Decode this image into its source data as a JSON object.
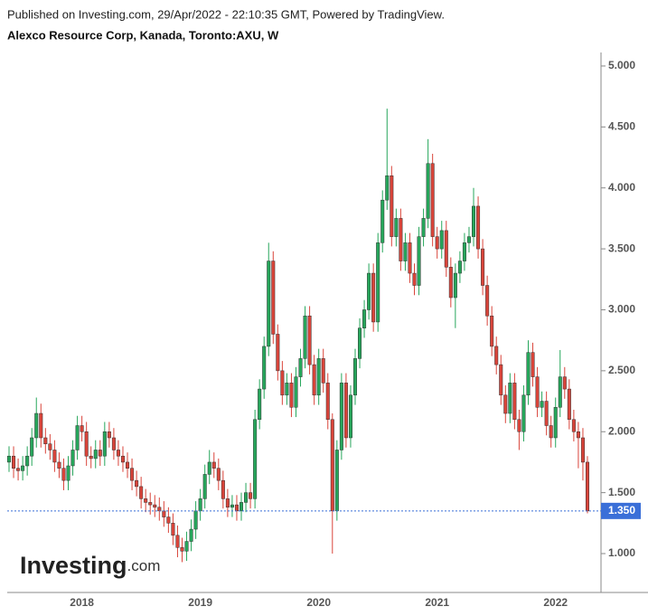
{
  "chart_data": {
    "type": "candlestick",
    "source": "Published on Investing.com, 29/Apr/2022 - 22:10:35 GMT, Powered by TradingView.",
    "title": "Alexco Resource Corp, Kanada, Toronto:AXU, W",
    "logo": "Investing",
    "logo_suffix": ".com",
    "up_color": "#26a65b",
    "down_color": "#d9443a",
    "last_price": {
      "value": 1.35,
      "label": "1.350"
    },
    "last_price_color": "#3a6fd8",
    "ylim": [
      0.681,
      5.111
    ],
    "yticks": [
      {
        "value": 1,
        "label": "1.000"
      },
      {
        "value": 1.5,
        "label": "1.500"
      },
      {
        "value": 2,
        "label": "2.000"
      },
      {
        "value": 2.5,
        "label": "2.500"
      },
      {
        "value": 3,
        "label": "3.000"
      },
      {
        "value": 3.5,
        "label": "3.500"
      },
      {
        "value": 4,
        "label": "4.000"
      },
      {
        "value": 4.5,
        "label": "4.500"
      },
      {
        "value": 5,
        "label": "5.000"
      }
    ],
    "categories": [
      null,
      null,
      null,
      null,
      null,
      null,
      null,
      null,
      null,
      null,
      null,
      null,
      null,
      null,
      null,
      null,
      "2018",
      null,
      null,
      null,
      null,
      null,
      null,
      null,
      null,
      null,
      null,
      null,
      null,
      null,
      null,
      null,
      null,
      null,
      null,
      null,
      null,
      null,
      null,
      null,
      null,
      null,
      "2019",
      null,
      null,
      null,
      null,
      null,
      null,
      null,
      null,
      null,
      null,
      null,
      null,
      null,
      null,
      null,
      null,
      null,
      null,
      null,
      null,
      null,
      null,
      null,
      null,
      null,
      "2020",
      null,
      null,
      null,
      null,
      null,
      null,
      null,
      null,
      null,
      null,
      null,
      null,
      null,
      null,
      null,
      null,
      null,
      null,
      null,
      null,
      null,
      null,
      null,
      null,
      null,
      "2021",
      null,
      null,
      null,
      null,
      null,
      null,
      null,
      null,
      null,
      null,
      null,
      null,
      null,
      null,
      null,
      null,
      null,
      null,
      null,
      null,
      null,
      null,
      null,
      null,
      null,
      "2022",
      null,
      null,
      null,
      null,
      null,
      null,
      null
    ],
    "open": [
      1.75,
      1.8,
      1.7,
      1.68,
      1.72,
      1.8,
      1.95,
      2.15,
      1.95,
      1.9,
      1.85,
      1.75,
      1.7,
      1.6,
      1.72,
      1.85,
      2.05,
      2.0,
      1.8,
      1.78,
      1.85,
      1.8,
      2.0,
      1.95,
      1.85,
      1.8,
      1.75,
      1.7,
      1.6,
      1.55,
      1.45,
      1.42,
      1.4,
      1.38,
      1.35,
      1.3,
      1.25,
      1.15,
      1.05,
      1.02,
      1.1,
      1.2,
      1.35,
      1.45,
      1.65,
      1.75,
      1.7,
      1.6,
      1.45,
      1.38,
      1.4,
      1.35,
      1.42,
      1.5,
      1.45,
      2.1,
      2.35,
      2.7,
      3.4,
      2.8,
      2.5,
      2.3,
      2.4,
      2.2,
      2.45,
      2.6,
      2.95,
      2.55,
      2.3,
      2.6,
      2.4,
      2.1,
      1.35,
      1.85,
      2.4,
      1.95,
      2.3,
      2.6,
      2.85,
      3.0,
      3.3,
      2.9,
      3.55,
      3.9,
      4.1,
      3.6,
      3.75,
      3.4,
      3.55,
      3.3,
      3.2,
      3.6,
      3.75,
      4.2,
      3.6,
      3.5,
      3.65,
      3.35,
      3.1,
      3.3,
      3.4,
      3.55,
      3.6,
      3.85,
      3.5,
      3.2,
      2.95,
      2.7,
      2.55,
      2.3,
      2.15,
      2.4,
      2.1,
      2.0,
      2.3,
      2.65,
      2.45,
      2.2,
      2.25,
      2.05,
      1.95,
      2.2,
      2.45,
      2.35,
      2.1,
      2.0,
      1.95,
      1.75
    ],
    "high": [
      1.88,
      1.88,
      1.78,
      1.8,
      1.88,
      2.03,
      2.28,
      2.23,
      2.03,
      1.98,
      1.93,
      1.83,
      1.78,
      1.8,
      1.93,
      2.13,
      2.13,
      2.08,
      1.88,
      1.93,
      1.93,
      2.08,
      2.08,
      2.03,
      1.93,
      1.88,
      1.83,
      1.78,
      1.68,
      1.63,
      1.53,
      1.5,
      1.48,
      1.46,
      1.43,
      1.38,
      1.33,
      1.23,
      1.13,
      1.18,
      1.28,
      1.43,
      1.53,
      1.73,
      1.85,
      1.83,
      1.78,
      1.68,
      1.53,
      1.48,
      1.48,
      1.5,
      1.58,
      1.58,
      2.18,
      2.43,
      2.78,
      3.55,
      3.48,
      2.88,
      2.58,
      2.48,
      2.48,
      2.53,
      2.68,
      3.03,
      3.03,
      2.63,
      2.68,
      2.68,
      2.48,
      2.15,
      1.93,
      2.48,
      2.48,
      2.38,
      2.68,
      2.93,
      3.08,
      3.38,
      3.38,
      3.63,
      3.98,
      4.65,
      4.18,
      3.83,
      3.83,
      3.63,
      3.63,
      3.38,
      3.68,
      3.83,
      4.4,
      4.28,
      3.68,
      3.73,
      3.73,
      3.43,
      3.38,
      3.48,
      3.63,
      3.68,
      4.0,
      3.93,
      3.58,
      3.28,
      3.03,
      2.78,
      2.63,
      2.38,
      2.48,
      2.48,
      2.18,
      2.38,
      2.75,
      2.73,
      2.53,
      2.33,
      2.33,
      2.13,
      2.28,
      2.67,
      2.53,
      2.43,
      2.18,
      2.08,
      2.03,
      1.8
    ],
    "low": [
      1.67,
      1.62,
      1.6,
      1.6,
      1.64,
      1.72,
      1.87,
      1.87,
      1.82,
      1.77,
      1.67,
      1.62,
      1.52,
      1.52,
      1.64,
      1.77,
      1.92,
      1.72,
      1.7,
      1.7,
      1.72,
      1.72,
      1.87,
      1.77,
      1.72,
      1.67,
      1.62,
      1.52,
      1.47,
      1.37,
      1.34,
      1.32,
      1.3,
      1.27,
      1.22,
      1.17,
      1.07,
      0.97,
      0.93,
      0.94,
      1.02,
      1.12,
      1.27,
      1.37,
      1.57,
      1.62,
      1.52,
      1.37,
      1.3,
      1.3,
      1.27,
      1.27,
      1.34,
      1.37,
      1.37,
      2.02,
      2.27,
      2.62,
      2.72,
      2.42,
      2.22,
      2.22,
      2.12,
      2.12,
      2.37,
      2.52,
      2.47,
      2.22,
      2.22,
      2.32,
      2.02,
      1.0,
      1.27,
      1.77,
      1.87,
      1.87,
      2.22,
      2.52,
      2.77,
      2.92,
      2.82,
      2.82,
      3.47,
      3.82,
      3.52,
      3.52,
      3.32,
      3.32,
      3.22,
      3.12,
      3.12,
      3.52,
      3.67,
      3.52,
      3.42,
      3.42,
      3.27,
      3.02,
      2.85,
      3.22,
      3.32,
      3.47,
      3.52,
      3.42,
      3.12,
      2.87,
      2.62,
      2.47,
      2.22,
      2.07,
      2.07,
      2.02,
      1.85,
      1.92,
      2.22,
      2.37,
      2.12,
      2.12,
      1.97,
      1.87,
      1.87,
      2.12,
      2.27,
      2.02,
      1.92,
      1.7,
      1.6,
      1.33
    ],
    "close": [
      1.8,
      1.7,
      1.68,
      1.72,
      1.8,
      1.95,
      2.15,
      1.95,
      1.9,
      1.85,
      1.75,
      1.7,
      1.6,
      1.72,
      1.85,
      2.05,
      2.0,
      1.8,
      1.78,
      1.85,
      1.8,
      2.0,
      1.95,
      1.85,
      1.8,
      1.75,
      1.7,
      1.6,
      1.55,
      1.45,
      1.42,
      1.4,
      1.38,
      1.35,
      1.3,
      1.25,
      1.15,
      1.05,
      1.02,
      1.1,
      1.2,
      1.35,
      1.45,
      1.65,
      1.75,
      1.7,
      1.6,
      1.45,
      1.38,
      1.4,
      1.35,
      1.42,
      1.5,
      1.45,
      2.1,
      2.35,
      2.7,
      3.4,
      2.8,
      2.5,
      2.3,
      2.4,
      2.2,
      2.45,
      2.6,
      2.95,
      2.55,
      2.3,
      2.6,
      2.4,
      2.1,
      1.35,
      1.85,
      2.4,
      1.95,
      2.3,
      2.6,
      2.85,
      3.0,
      3.3,
      2.9,
      3.55,
      3.9,
      4.1,
      3.6,
      3.75,
      3.4,
      3.55,
      3.3,
      3.2,
      3.6,
      3.75,
      4.2,
      3.6,
      3.5,
      3.65,
      3.35,
      3.1,
      3.3,
      3.4,
      3.55,
      3.6,
      3.85,
      3.5,
      3.2,
      2.95,
      2.7,
      2.55,
      2.3,
      2.15,
      2.4,
      2.1,
      2.0,
      2.3,
      2.65,
      2.45,
      2.2,
      2.25,
      2.05,
      1.95,
      2.2,
      2.45,
      2.35,
      2.1,
      2.0,
      1.95,
      1.75,
      1.35
    ]
  }
}
